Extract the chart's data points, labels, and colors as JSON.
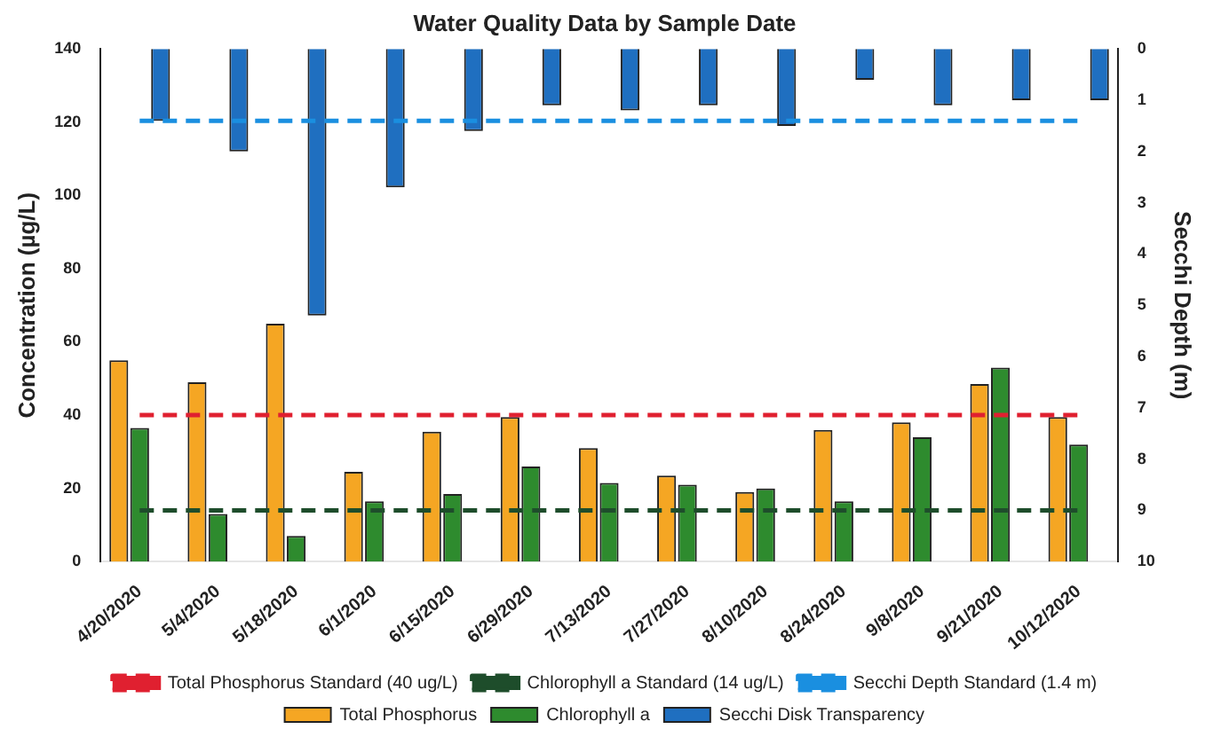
{
  "chart_data": {
    "type": "bar",
    "title": "Water Quality Data by Sample Date",
    "ylabel": "Concentration (µg/L)",
    "y2label": "Secchi Depth (m)",
    "categories": [
      "4/20/2020",
      "5/4/2020",
      "5/18/2020",
      "6/1/2020",
      "6/15/2020",
      "6/29/2020",
      "7/13/2020",
      "7/27/2020",
      "8/10/2020",
      "8/24/2020",
      "9/8/2020",
      "9/21/2020",
      "10/12/2020"
    ],
    "series": [
      {
        "name": "Total Phosphorus",
        "color": "#f5a623",
        "values": [
          55,
          49,
          65,
          24.5,
          35.5,
          39.5,
          31,
          23.5,
          19,
          36,
          38,
          48.5,
          39.5
        ]
      },
      {
        "name": "Chlorophyll a",
        "color": "#2e8b2e",
        "values": [
          36.5,
          13,
          7,
          16.5,
          18.5,
          26,
          21.5,
          21,
          20,
          16.5,
          34,
          53,
          32
        ]
      },
      {
        "name": "Secchi Disk Transparency",
        "color": "#1f6fc0",
        "axis": "y2",
        "values": [
          1.4,
          2.0,
          5.2,
          2.7,
          1.6,
          1.1,
          1.2,
          1.1,
          1.5,
          0.6,
          1.1,
          1.0,
          1.0
        ]
      },
      {
        "name": "Total Phosphorus Standard (40 ug/L)",
        "type": "line",
        "line_style": "dashed",
        "color": "#e02030",
        "values": [
          40,
          40,
          40,
          40,
          40,
          40,
          40,
          40,
          40,
          40,
          40,
          40,
          40
        ]
      },
      {
        "name": "Chlorophyll a Standard (14 ug/L)",
        "type": "line",
        "line_style": "dashed",
        "color": "#1e4d2b",
        "values": [
          14,
          14,
          14,
          14,
          14,
          14,
          14,
          14,
          14,
          14,
          14,
          14,
          14
        ]
      },
      {
        "name": "Secchi Depth Standard (1.4 m)",
        "type": "line",
        "line_style": "dashed",
        "color": "#1a8fe0",
        "axis": "y2",
        "values": [
          1.4,
          1.4,
          1.4,
          1.4,
          1.4,
          1.4,
          1.4,
          1.4,
          1.4,
          1.4,
          1.4,
          1.4,
          1.4
        ]
      }
    ],
    "ylim": [
      0,
      140
    ],
    "yticks": [
      0,
      20,
      40,
      60,
      80,
      100,
      120,
      140
    ],
    "y2lim": [
      10,
      0
    ],
    "y2ticks": [
      0,
      1,
      2,
      3,
      4,
      5,
      6,
      7,
      8,
      9,
      10
    ],
    "marker": "none",
    "grid": false,
    "legend": "bottom"
  }
}
